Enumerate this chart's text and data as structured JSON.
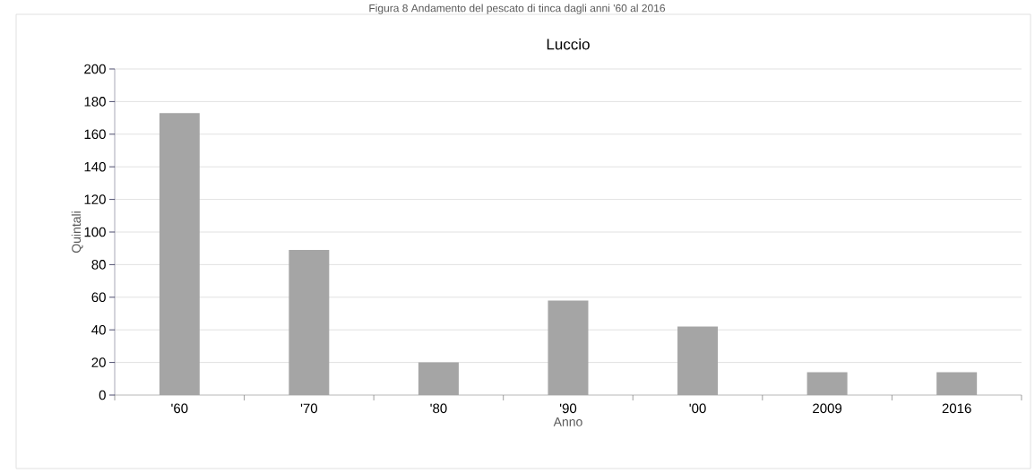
{
  "chart_data": {
    "type": "bar",
    "title": "Luccio",
    "xlabel": "Anno",
    "ylabel": "Quintali",
    "annotations": [
      "Figura 8 Andamento del pescato di tinca dagli anni '60 al 2016"
    ],
    "categories": [
      "'60",
      "'70",
      "'80",
      "'90",
      "'00",
      "2009",
      "2016"
    ],
    "values": [
      173,
      89,
      20,
      58,
      42,
      14,
      14
    ],
    "color": "#a5a5a5",
    "ylim": [
      0,
      200
    ],
    "yticks": [
      0,
      20,
      40,
      60,
      80,
      100,
      120,
      140,
      160,
      180,
      200
    ],
    "grid": "y"
  }
}
